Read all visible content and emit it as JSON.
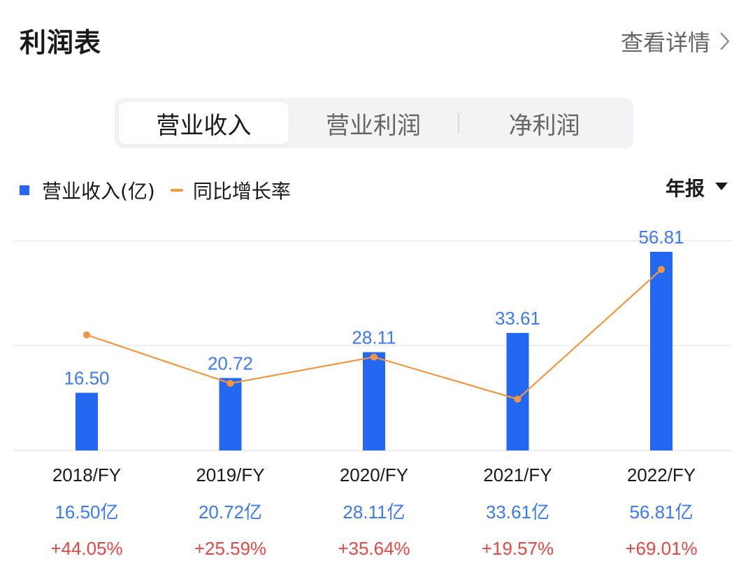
{
  "header": {
    "title": "利润表",
    "detail_label": "查看详情"
  },
  "tabs": [
    {
      "label": "营业收入",
      "active": true
    },
    {
      "label": "营业利润",
      "active": false
    },
    {
      "label": "净利润",
      "active": false
    }
  ],
  "legend": {
    "bar_label": "营业收入(亿)",
    "line_label": "同比增长率"
  },
  "period_select": {
    "value": "年报"
  },
  "colors": {
    "bar": "#2468f2",
    "line": "#f3973f",
    "positive": "#e8473f",
    "value_text": "#3a7bf5",
    "grid": "#ececec"
  },
  "chart_data": {
    "type": "bar",
    "categories": [
      "2018/FY",
      "2019/FY",
      "2020/FY",
      "2021/FY",
      "2022/FY"
    ],
    "series": [
      {
        "name": "营业收入(亿)",
        "type": "bar",
        "values": [
          16.5,
          20.72,
          28.11,
          33.61,
          56.81
        ],
        "labels": [
          "16.50",
          "20.72",
          "28.11",
          "33.61",
          "56.81"
        ]
      },
      {
        "name": "同比增长率",
        "type": "line",
        "values": [
          44.05,
          25.59,
          35.64,
          19.57,
          69.01
        ]
      }
    ],
    "revenue_texts": [
      "16.50亿",
      "20.72亿",
      "28.11亿",
      "33.61亿",
      "56.81亿"
    ],
    "growth_texts": [
      "+44.05%",
      "+25.59%",
      "+35.64%",
      "+19.57%",
      "+69.01%"
    ],
    "grid": true,
    "legend_position": "top-left"
  }
}
